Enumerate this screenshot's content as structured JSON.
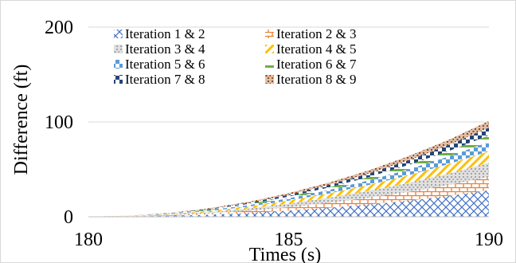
{
  "chart_data": {
    "type": "area",
    "stacked": true,
    "title": "",
    "xlabel": "Times (s)",
    "ylabel": "Difference (ft)",
    "xlim": [
      180,
      190
    ],
    "ylim": [
      0,
      200
    ],
    "x_ticks": [
      180,
      185,
      190
    ],
    "y_ticks": [
      0,
      100,
      200
    ],
    "grid": "horizontal",
    "legend_position": "top-left",
    "x": [
      180,
      181,
      182,
      183,
      184,
      185,
      186,
      187,
      188,
      189,
      190
    ],
    "series": [
      {
        "name": "Iteration 1 & 2",
        "pattern": "crosshatch",
        "color": "#4472C4",
        "values": [
          0,
          0.3,
          1,
          2.2,
          4,
          6.5,
          9.5,
          13,
          17,
          22,
          28
        ]
      },
      {
        "name": "Iteration 2 & 3",
        "pattern": "brick",
        "color": "#ED7D31",
        "values": [
          0,
          0.2,
          0.6,
          1.3,
          2.3,
          3.6,
          5.2,
          7.1,
          9.3,
          11.6,
          14
        ]
      },
      {
        "name": "Iteration 3 & 4",
        "pattern": "dots",
        "color": "#A5A5A5",
        "values": [
          0,
          0.2,
          0.6,
          1.4,
          2.4,
          3.8,
          5.4,
          7.3,
          9.5,
          12,
          15
        ]
      },
      {
        "name": "Iteration 4 & 5",
        "pattern": "diagonal",
        "color": "#FFC000",
        "values": [
          0,
          0.1,
          0.5,
          1.1,
          2.0,
          3.1,
          4.5,
          6.1,
          8.0,
          10,
          12
        ]
      },
      {
        "name": "Iteration 5 & 6",
        "pattern": "checker",
        "color": "#5B9BD5",
        "values": [
          0,
          0.1,
          0.4,
          0.9,
          1.6,
          2.5,
          3.6,
          4.9,
          6.3,
          8.0,
          10
        ]
      },
      {
        "name": "Iteration 6 & 7",
        "pattern": "hlines",
        "color": "#70AD47",
        "values": [
          0,
          0.1,
          0.3,
          0.7,
          1.2,
          1.8,
          2.6,
          3.5,
          4.6,
          5.7,
          7
        ]
      },
      {
        "name": "Iteration 7 & 8",
        "pattern": "checker",
        "color": "#264478",
        "values": [
          0,
          0.1,
          0.3,
          0.7,
          1.2,
          1.9,
          2.8,
          3.8,
          5.0,
          6.4,
          8
        ]
      },
      {
        "name": "Iteration 8 & 9",
        "pattern": "dots",
        "color": "#9E480E",
        "values": [
          0,
          0.1,
          0.3,
          0.6,
          1.1,
          1.7,
          2.4,
          3.3,
          4.3,
          5.5,
          7
        ]
      }
    ]
  }
}
